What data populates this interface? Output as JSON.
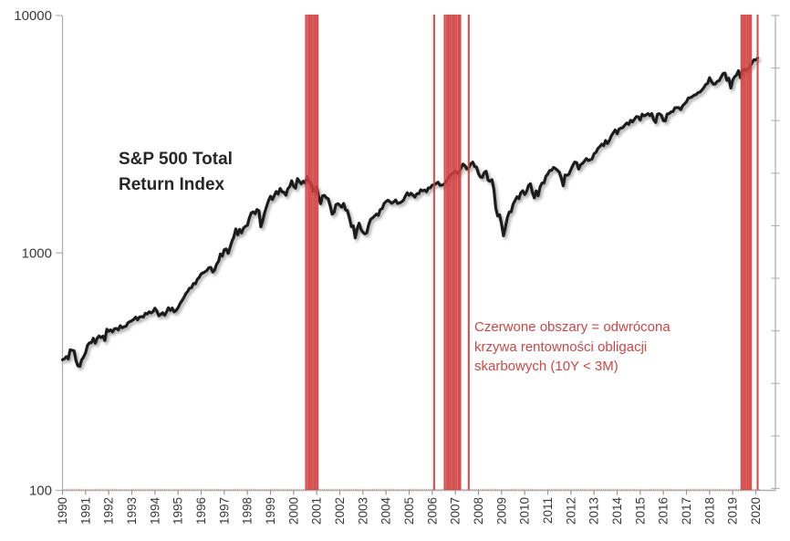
{
  "chart": {
    "title_lines": [
      "S&P 500 Total",
      "Return Index"
    ],
    "annotation_lines": [
      "Czerwone obszary = odwrócona",
      "krzywa rentowności obligacji",
      "skarbowych (10Y < 3M)"
    ],
    "colors": {
      "series": "#1c1c1c",
      "inversion_line": "#d24040",
      "annotation_text": "#cb4747",
      "axis_line": "#b0b0b0",
      "tick_label": "#3a3a3a",
      "minor_month_tick": "#cc8888"
    }
  },
  "chart_data": {
    "type": "line",
    "title": "S&P 500 Total Return Index",
    "xlabel": "",
    "ylabel": "",
    "legend": "none",
    "grid": "off",
    "y_axis": {
      "scale": "log",
      "range": [
        100,
        10000
      ],
      "tick_labels": [
        "100",
        "1000",
        "10000"
      ]
    },
    "x_axis": {
      "range": [
        1990,
        2020.87
      ],
      "tick_labels": [
        "1990",
        "1991",
        "1992",
        "1993",
        "1994",
        "1995",
        "1996",
        "1997",
        "1998",
        "1999",
        "2000",
        "2001",
        "2002",
        "2003",
        "2004",
        "2005",
        "2006",
        "2007",
        "2008",
        "2009",
        "2010",
        "2011",
        "2012",
        "2013",
        "2014",
        "2015",
        "2016",
        "2017",
        "2018",
        "2019",
        "2020"
      ]
    },
    "series": [
      {
        "name": "S&P 500 Total Return Index",
        "start_year": 1990,
        "interval": "monthly",
        "values": [
          355,
          358,
          366,
          358,
          391,
          389,
          387,
          352,
          335,
          333,
          355,
          365,
          380,
          408,
          418,
          419,
          437,
          417,
          437,
          447,
          440,
          446,
          428,
          477,
          468,
          474,
          465,
          479,
          481,
          474,
          494,
          484,
          489,
          491,
          508,
          514,
          518,
          525,
          536,
          523,
          537,
          539,
          537,
          557,
          553,
          565,
          559,
          566,
          585,
          569,
          544,
          551,
          560,
          546,
          564,
          588,
          573,
          586,
          565,
          573,
          588,
          611,
          629,
          648,
          673,
          688,
          711,
          713,
          744,
          741,
          774,
          789,
          816,
          824,
          832,
          844,
          866,
          869,
          831,
          848,
          896,
          921,
          990,
          970,
          1031,
          1039,
          996,
          1056,
          1120,
          1170,
          1263,
          1193,
          1257,
          1215,
          1272,
          1294,
          1308,
          1402,
          1474,
          1489,
          1463,
          1523,
          1506,
          1289,
          1371,
          1482,
          1573,
          1663,
          1733,
          1679,
          1746,
          1813,
          1770,
          1869,
          1810,
          1801,
          1752,
          1863,
          1901,
          2013,
          1911,
          1875,
          2058,
          1997,
          1956,
          2004,
          1973,
          2095,
          1985,
          1976,
          1820,
          1829,
          1894,
          1722,
          1612,
          1738,
          1749,
          1707,
          1690,
          1584,
          1457,
          1484,
          1598,
          1612,
          1588,
          1558,
          1616,
          1519,
          1507,
          1400,
          1291,
          1300,
          1158,
          1260,
          1334,
          1256,
          1223,
          1204,
          1216,
          1317,
          1386,
          1404,
          1429,
          1457,
          1441,
          1522,
          1536,
          1616,
          1646,
          1669,
          1644,
          1618,
          1640,
          1672,
          1616,
          1623,
          1641,
          1666,
          1733,
          1792,
          1748,
          1785,
          1753,
          1720,
          1775,
          1777,
          1843,
          1826,
          1841,
          1811,
          1879,
          1880,
          1930,
          1935,
          1959,
          1986,
          1928,
          1931,
          1943,
          1989,
          2040,
          2107,
          2146,
          2177,
          2210,
          2166,
          2191,
          2287,
          2368,
          2328,
          2256,
          2289,
          2375,
          2412,
          2312,
          2296,
          2158,
          2088,
          2079,
          2180,
          2208,
          2022,
          2005,
          2034,
          1853,
          1542,
          1431,
          1445,
          1323,
          1182,
          1287,
          1410,
          1488,
          1491,
          1604,
          1662,
          1724,
          1692,
          1793,
          1828,
          1762,
          1817,
          1926,
          1957,
          1800,
          1706,
          1825,
          1742,
          1898,
          1971,
          1971,
          2102,
          2151,
          2226,
          2227,
          2292,
          2266,
          2229,
          2183,
          2065,
          1919,
          2129,
          2123,
          2145,
          2242,
          2338,
          2415,
          2400,
          2256,
          2349,
          2382,
          2435,
          2498,
          2452,
          2466,
          2488,
          2617,
          2652,
          2752,
          2804,
          2870,
          2831,
          2975,
          2890,
          2980,
          3117,
          3212,
          3293,
          3180,
          3325,
          3352,
          3377,
          3457,
          3528,
          3480,
          3619,
          3568,
          3656,
          3753,
          3742,
          3630,
          3838,
          3778,
          3813,
          3863,
          3788,
          3868,
          3634,
          3544,
          3843,
          3855,
          3794,
          3606,
          3601,
          3845,
          3860,
          3930,
          3940,
          4085,
          4091,
          4091,
          4017,
          4166,
          4248,
          4329,
          4500,
          4505,
          4552,
          4616,
          4644,
          4739,
          4754,
          4853,
          4966,
          5118,
          5174,
          5471,
          5269,
          5135,
          5155,
          5279,
          5312,
          5510,
          5690,
          5722,
          5331,
          5439,
          4949,
          5345,
          5517,
          5624,
          5852,
          5480,
          5866,
          5950,
          5856,
          5966,
          6095,
          6317,
          6508,
          6504,
          6620
        ]
      }
    ],
    "inversion_marker_years": [
      2000.54,
      2000.63,
      2000.71,
      2000.79,
      2000.88,
      2000.96,
      2001.04,
      2006.08,
      2006.54,
      2006.63,
      2006.71,
      2006.79,
      2006.88,
      2006.96,
      2007.04,
      2007.13,
      2007.21,
      2007.58,
      2019.38,
      2019.46,
      2019.54,
      2019.63,
      2019.71,
      2019.79,
      2020.08
    ],
    "inversion_note": "Czerwone obszary = odwrócona krzywa rentowności obligacji skarbowych (10Y < 3M)"
  }
}
